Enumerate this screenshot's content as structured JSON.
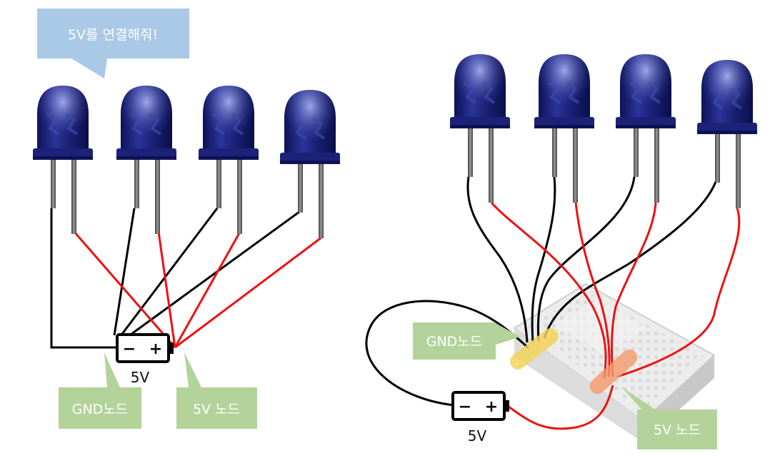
{
  "speech_bubble": {
    "text": "5V를 연결해줘!"
  },
  "left_diagram": {
    "battery_label": "5V",
    "gnd_node_label": "GND노드",
    "v5_node_label": "5V 노드",
    "battery_minus": "−",
    "battery_plus": "+"
  },
  "right_diagram": {
    "battery_label": "5V",
    "gnd_node_label": "GND노드",
    "v5_node_label": "5V 노드",
    "battery_minus": "−",
    "battery_plus": "+"
  },
  "colors": {
    "led_body": "#1a1f6e",
    "led_highlight": "#6f7bd6",
    "gnd_wire": "#000000",
    "v5_wire": "#ee1111",
    "callout_bg": "#a9c9e6",
    "label_bg": "#b3d39a",
    "gnd_highlight": "#f3d25a",
    "v5_highlight": "#f29a6a"
  },
  "icons": [
    "led-icon",
    "battery-icon",
    "breadboard-icon"
  ]
}
